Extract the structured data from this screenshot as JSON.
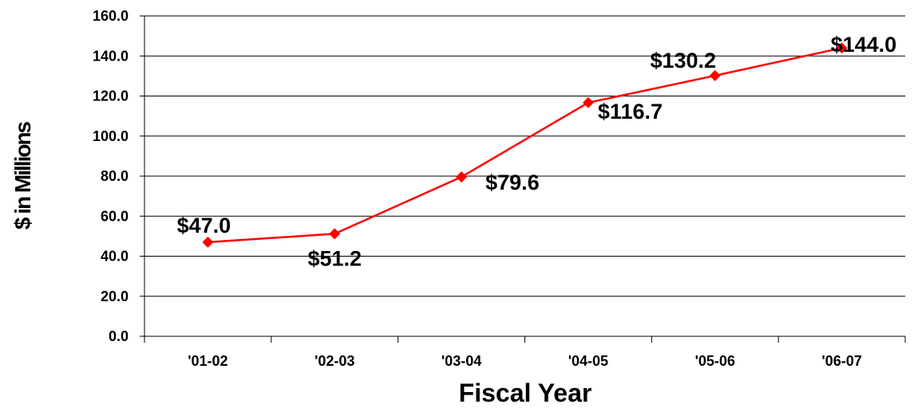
{
  "chart_data": {
    "type": "line",
    "title": "",
    "xlabel": "Fiscal Year",
    "ylabel": "$ in Millions",
    "categories": [
      "'01-02",
      "'02-03",
      "'03-04",
      "'04-05",
      "'05-06",
      "'06-07"
    ],
    "series": [
      {
        "values": [
          47.0,
          51.2,
          79.6,
          116.7,
          130.2,
          144.0
        ]
      }
    ],
    "data_labels": [
      "$47.0",
      "$51.2",
      "$79.6",
      "$116.7",
      "$130.2",
      "$144.0"
    ],
    "y_ticks": [
      "0.0",
      "20.0",
      "40.0",
      "60.0",
      "80.0",
      "100.0",
      "120.0",
      "140.0",
      "160.0"
    ],
    "ylim": [
      0,
      160
    ],
    "grid": true,
    "legend": "none",
    "line_color": "#ff0000",
    "marker": "diamond"
  }
}
